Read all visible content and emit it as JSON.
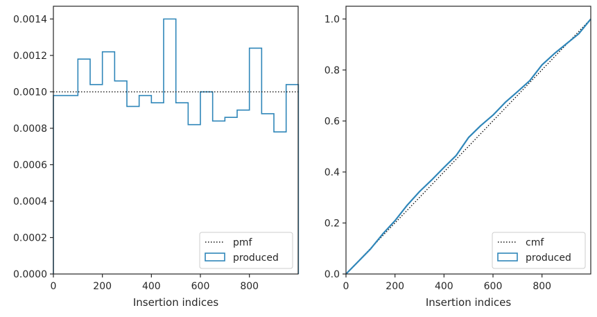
{
  "colors": {
    "series": "#2f86b9",
    "reference": "#111111",
    "axes": "#262626",
    "legend_border": "#cccccc"
  },
  "chart_data": [
    {
      "type": "histogram",
      "xlabel": "Insertion indices",
      "ylabel": "",
      "xlim": [
        0,
        999
      ],
      "ylim": [
        0,
        0.00147
      ],
      "xticks": [
        0,
        200,
        400,
        600,
        800
      ],
      "yticks": [
        0.0,
        0.0002,
        0.0004,
        0.0006,
        0.0008,
        0.001,
        0.0012,
        0.0014
      ],
      "ytick_labels": [
        "0.0000",
        "0.0002",
        "0.0004",
        "0.0006",
        "0.0008",
        "0.0010",
        "0.0012",
        "0.0014"
      ],
      "grid": false,
      "legend_position": "lower-right",
      "bin_edges": [
        0,
        100,
        150,
        200,
        250,
        300,
        350,
        400,
        450,
        500,
        550,
        600,
        650,
        700,
        750,
        800,
        850,
        900,
        950,
        1000
      ],
      "series": [
        {
          "name": "produced",
          "style": "step",
          "values": [
            0.00098,
            0.00118,
            0.00104,
            0.00122,
            0.00106,
            0.00092,
            0.00098,
            0.00094,
            0.0014,
            0.00094,
            0.00082,
            0.001,
            0.00084,
            0.00086,
            0.0009,
            0.00124,
            0.00088,
            0.00078,
            0.00104
          ]
        },
        {
          "name": "pmf",
          "style": "dotted",
          "constant": 0.001
        }
      ]
    },
    {
      "type": "line",
      "xlabel": "Insertion indices",
      "ylabel": "",
      "xlim": [
        0,
        999
      ],
      "ylim": [
        0,
        1.05
      ],
      "xticks": [
        0,
        200,
        400,
        600,
        800
      ],
      "yticks": [
        0.0,
        0.2,
        0.4,
        0.6,
        0.8,
        1.0
      ],
      "ytick_labels": [
        "0.0",
        "0.2",
        "0.4",
        "0.6",
        "0.8",
        "1.0"
      ],
      "grid": false,
      "legend_position": "lower-right",
      "series": [
        {
          "name": "cmf",
          "style": "dotted",
          "x": [
            0,
            999
          ],
          "y": [
            0,
            1.0
          ]
        },
        {
          "name": "produced",
          "style": "step",
          "x": [
            0,
            50,
            100,
            150,
            200,
            250,
            300,
            350,
            400,
            450,
            500,
            550,
            600,
            650,
            700,
            750,
            800,
            850,
            900,
            950,
            999
          ],
          "y": [
            0,
            0.049,
            0.098,
            0.157,
            0.209,
            0.27,
            0.323,
            0.369,
            0.418,
            0.465,
            0.535,
            0.582,
            0.623,
            0.673,
            0.715,
            0.758,
            0.82,
            0.864,
            0.903,
            0.942,
            1.0
          ]
        }
      ]
    }
  ]
}
